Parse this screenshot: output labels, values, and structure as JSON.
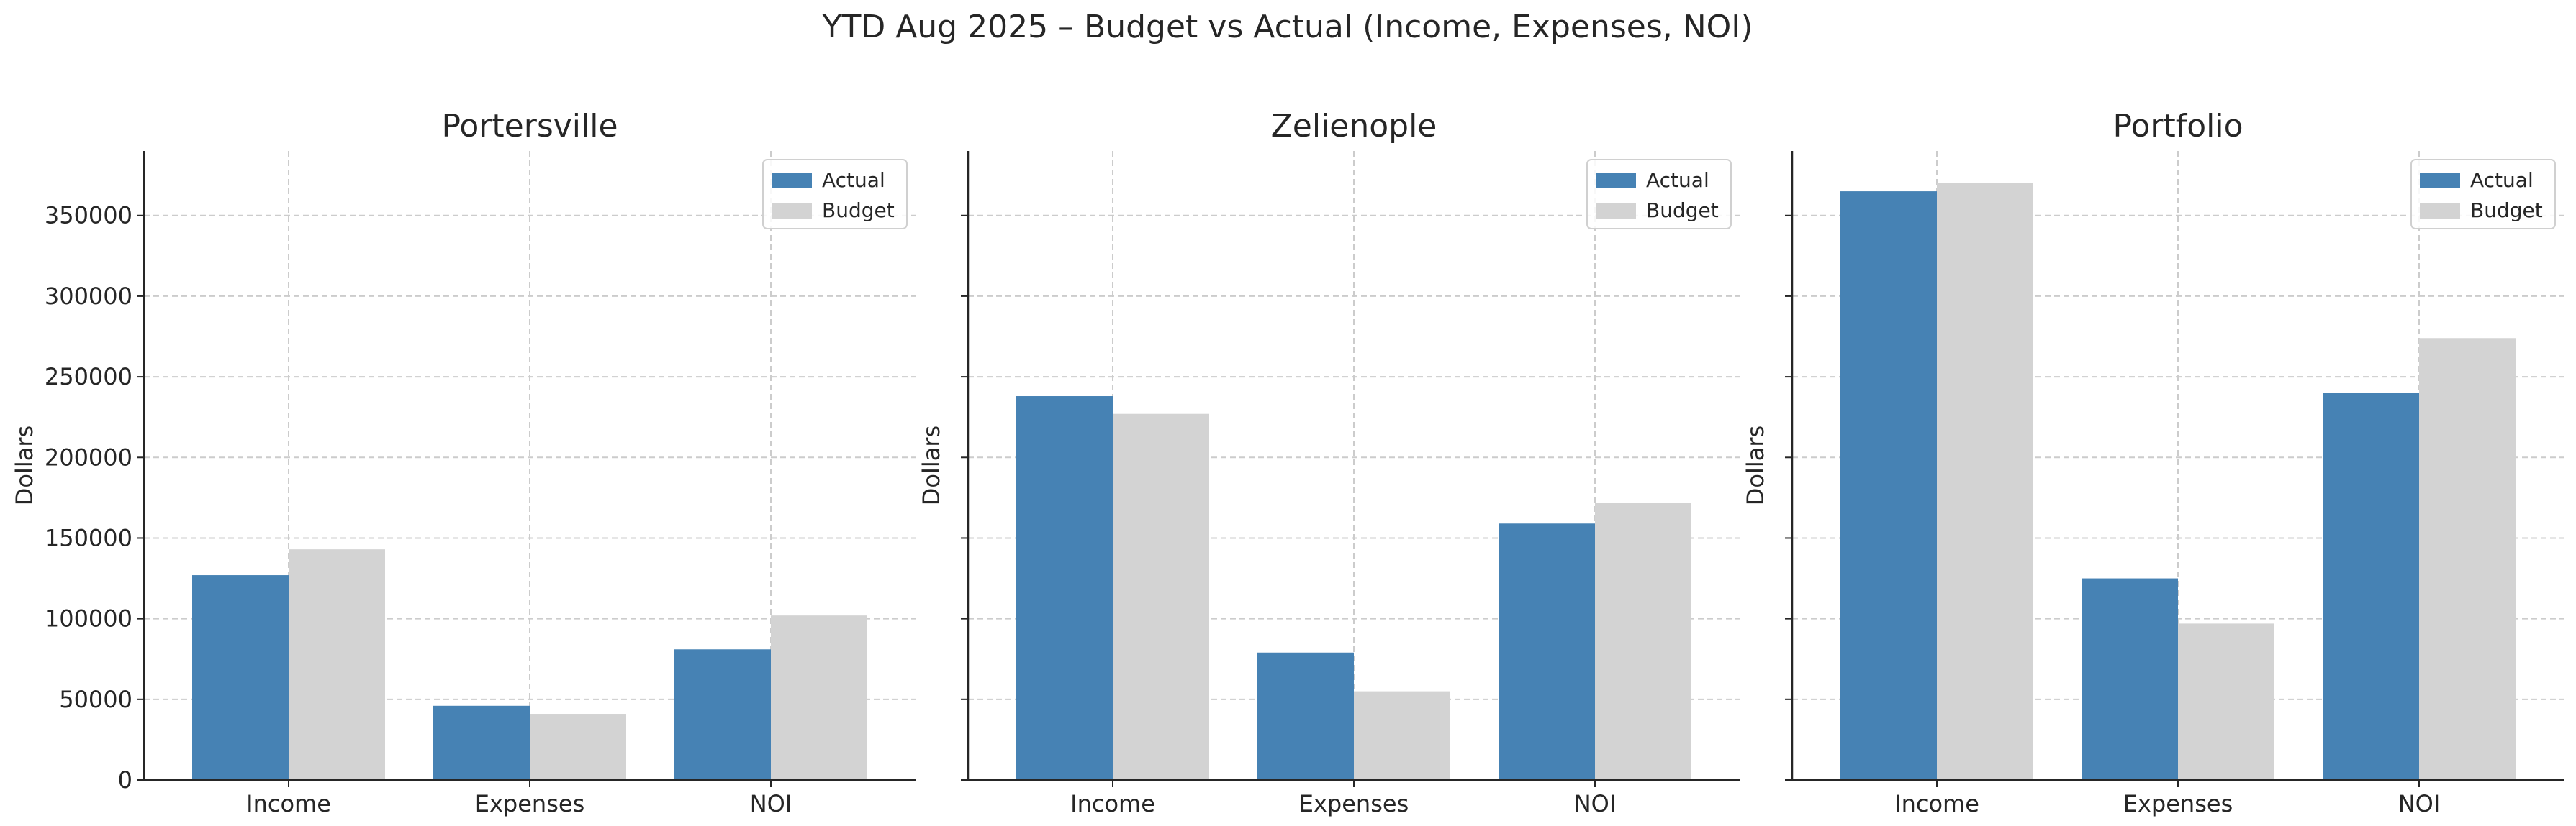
{
  "chart_data": {
    "type": "bar",
    "title": "YTD Aug 2025 – Budget vs Actual (Income, Expenses, NOI)",
    "ylim": [
      0,
      390000
    ],
    "yticks": [
      0,
      50000,
      100000,
      150000,
      200000,
      250000,
      300000,
      350000
    ],
    "grid": true,
    "legend_position": "top-right",
    "colors": {
      "Actual": "#4682b4",
      "Budget": "#d3d3d3"
    },
    "panels": [
      {
        "title": "Portersville",
        "ylabel": "Dollars",
        "categories": [
          "Income",
          "Expenses",
          "NOI"
        ],
        "series": [
          {
            "name": "Actual",
            "values": [
              127000,
              46000,
              81000
            ]
          },
          {
            "name": "Budget",
            "values": [
              143000,
              41000,
              102000
            ]
          }
        ]
      },
      {
        "title": "Zelienople",
        "ylabel": "Dollars",
        "categories": [
          "Income",
          "Expenses",
          "NOI"
        ],
        "series": [
          {
            "name": "Actual",
            "values": [
              238000,
              79000,
              159000
            ]
          },
          {
            "name": "Budget",
            "values": [
              227000,
              55000,
              172000
            ]
          }
        ]
      },
      {
        "title": "Portfolio",
        "ylabel": "Dollars",
        "categories": [
          "Income",
          "Expenses",
          "NOI"
        ],
        "series": [
          {
            "name": "Actual",
            "values": [
              365000,
              125000,
              240000
            ]
          },
          {
            "name": "Budget",
            "values": [
              370000,
              97000,
              274000
            ]
          }
        ]
      }
    ]
  }
}
